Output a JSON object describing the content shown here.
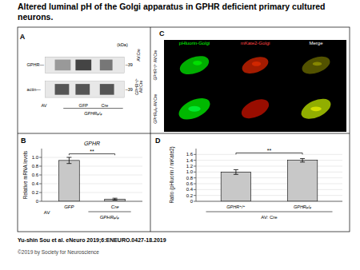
{
  "title": "Altered luminal pH of the Golgi apparatus in GPHR deficient primary cultured neurons.",
  "annotations": [
    "Yu-shin Sou et al. eNeuro 2019;6:ENEURO.0427-18.2019",
    "©2019 by Society for Neuroscience"
  ],
  "chart_data": [
    {
      "type": "blot",
      "annotations": [
        "A",
        "(kDa)",
        "GPHR—",
        "–39",
        "actin—",
        "–39",
        "AV",
        "GFP",
        "Cre",
        "GPHRᵩ/ᵩ",
        "AV:Cre",
        "GPHR⁺/⁺\nAV:Cre"
      ]
    },
    {
      "type": "bar",
      "title": "GPHR",
      "categories": [
        "GFP",
        "Cre"
      ],
      "values": [
        0.93,
        0.05
      ],
      "errors": [
        0.07,
        0.02
      ],
      "colors": [
        "#c8c8c8",
        "#c8c8c8"
      ],
      "y_label": "Relative mRNA levels",
      "ylim": [
        0,
        1.2
      ],
      "yticks": [
        0,
        0.2,
        0.4,
        0.6,
        0.8,
        {
          "value": 1.0,
          "label": "1.0"
        }
      ],
      "grid": true,
      "significance": {
        "text": "**",
        "y": 1.08,
        "bracket_y": 1.05
      },
      "annotations": [
        "B",
        "AV",
        "GPHRᵩ/ᵩ"
      ]
    },
    {
      "type": "micrograph",
      "colors": [
        "#00ff00",
        "#ff4444",
        "#ffffff"
      ],
      "annotations": [
        "C",
        "pHluorin-Golgi",
        "mKate2-Golgi",
        "Merge",
        "GPHR⁺/⁺ AV:Cre",
        "GPHRᵩ/ᵩ AV:Cre"
      ]
    },
    {
      "type": "bar",
      "categories": [
        "GPHR⁺/⁺",
        "GPHRᵩ/ᵩ"
      ],
      "values": [
        1.0,
        1.4
      ],
      "errors": [
        0.08,
        0.06
      ],
      "colors": [
        "#c8c8c8",
        "#c8c8c8"
      ],
      "y_label": "Ratio (pHluorin / mKate2)",
      "ylim": [
        0,
        1.8
      ],
      "yticks": [
        0,
        0.2,
        0.4,
        0.6,
        0.8,
        {
          "value": 1.0,
          "label": "1.0"
        },
        1.2,
        1.4,
        1.6
      ],
      "grid": true,
      "significance": {
        "text": "**",
        "y": 1.65,
        "bracket_y": 1.6
      },
      "annotations": [
        "D",
        "AV: Cre"
      ]
    }
  ]
}
